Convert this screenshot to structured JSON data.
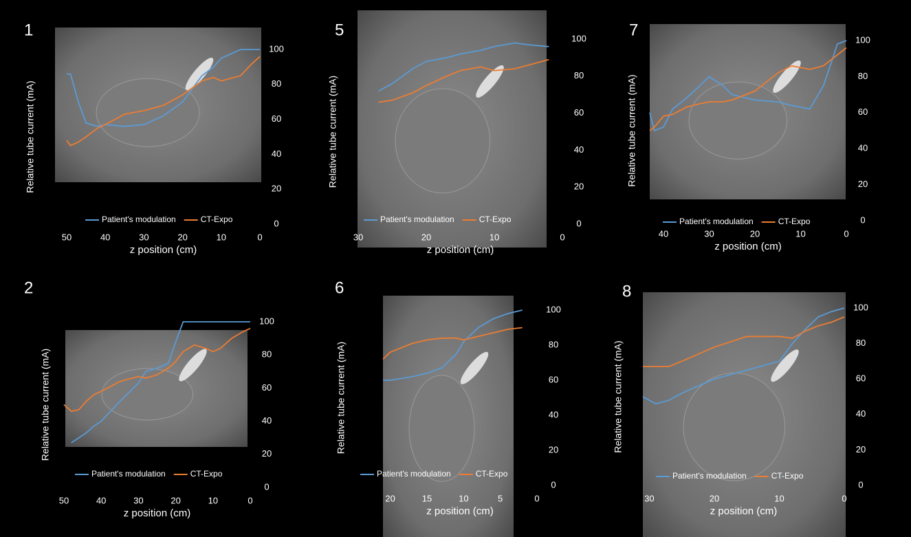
{
  "chart_data": [
    {
      "type": "line",
      "title": "1",
      "x_label": "z position (cm)",
      "y_label": "Relative tube current (mA)",
      "xlim": [
        50,
        0
      ],
      "xticks": [
        50,
        40,
        30,
        20,
        10,
        0
      ],
      "ylim": [
        0,
        100
      ],
      "yticks": [
        0,
        20,
        40,
        60,
        80,
        100
      ],
      "x": [
        50,
        49,
        47,
        45,
        42,
        40,
        35,
        30,
        25,
        20,
        15,
        12,
        10,
        5,
        2,
        0
      ],
      "series": [
        {
          "name": "Patient's modulation",
          "color": "#5b9bd5",
          "values": [
            86,
            86,
            70,
            58,
            56,
            57,
            56,
            57,
            62,
            70,
            85,
            90,
            95,
            100,
            100,
            100
          ]
        },
        {
          "name": "CT-Expo",
          "color": "#ed7d31",
          "values": [
            48,
            45,
            47,
            50,
            55,
            57,
            63,
            65,
            68,
            74,
            82,
            84,
            82,
            85,
            92,
            96
          ]
        }
      ]
    },
    {
      "type": "line",
      "title": "5",
      "x_label": "z position (cm)",
      "y_label": "Relative tube current (mA)",
      "xlim": [
        30,
        0
      ],
      "xticks": [
        30,
        20,
        10,
        0
      ],
      "ylim": [
        0,
        100
      ],
      "yticks": [
        0,
        20,
        40,
        60,
        80,
        100
      ],
      "x": [
        27,
        25,
        22,
        20,
        17,
        15,
        12,
        10,
        7,
        5,
        2
      ],
      "series": [
        {
          "name": "Patient's modulation",
          "color": "#5b9bd5",
          "values": [
            72,
            76,
            84,
            88,
            90,
            92,
            94,
            96,
            98,
            97,
            96
          ]
        },
        {
          "name": "CT-Expo",
          "color": "#ed7d31",
          "values": [
            66,
            67,
            71,
            75,
            80,
            83,
            85,
            83,
            84,
            86,
            89
          ]
        }
      ]
    },
    {
      "type": "line",
      "title": "7",
      "x_label": "z position (cm)",
      "y_label": "Relative tube current (mA)",
      "xlim": [
        43,
        0
      ],
      "xticks": [
        40,
        30,
        20,
        10,
        0
      ],
      "ylim": [
        0,
        100
      ],
      "yticks": [
        0,
        20,
        40,
        60,
        80,
        100
      ],
      "x": [
        43,
        42,
        40,
        38,
        35,
        32,
        30,
        27,
        25,
        20,
        15,
        12,
        10,
        8,
        5,
        3,
        2,
        0
      ],
      "series": [
        {
          "name": "Patient's modulation",
          "color": "#5b9bd5",
          "values": [
            60,
            50,
            52,
            62,
            68,
            75,
            80,
            75,
            70,
            67,
            66,
            64,
            63,
            62,
            75,
            90,
            98,
            100
          ]
        },
        {
          "name": "CT-Expo",
          "color": "#ed7d31",
          "values": [
            50,
            52,
            58,
            59,
            63,
            65,
            66,
            66,
            67,
            72,
            82,
            86,
            85,
            84,
            86,
            90,
            92,
            96
          ]
        }
      ]
    },
    {
      "type": "line",
      "title": "2",
      "x_label": "z position (cm)",
      "y_label": "Relative tube current (mA)",
      "xlim": [
        50,
        0
      ],
      "xticks": [
        50,
        40,
        30,
        20,
        10,
        0
      ],
      "ylim": [
        0,
        100
      ],
      "yticks": [
        0,
        20,
        40,
        60,
        80,
        100
      ],
      "x": [
        50,
        48,
        46,
        44,
        42,
        40,
        35,
        30,
        28,
        25,
        22,
        20,
        18,
        15,
        12,
        10,
        8,
        5,
        2,
        0
      ],
      "series": [
        {
          "name": "Patient's modulation",
          "color": "#5b9bd5",
          "values": [
            null,
            27,
            30,
            33,
            37,
            40,
            52,
            63,
            70,
            72,
            75,
            88,
            100,
            100,
            100,
            100,
            100,
            100,
            100,
            100
          ]
        },
        {
          "name": "CT-Expo",
          "color": "#ed7d31",
          "values": [
            50,
            46,
            47,
            52,
            56,
            58,
            64,
            67,
            66,
            68,
            72,
            76,
            82,
            86,
            84,
            82,
            84,
            90,
            94,
            96
          ]
        }
      ]
    },
    {
      "type": "line",
      "title": "6",
      "x_label": "z position (cm)",
      "y_label": "Relative tube current (mA)",
      "xlim": [
        21,
        0
      ],
      "xticks": [
        20,
        15,
        10,
        5,
        0
      ],
      "ylim": [
        0,
        100
      ],
      "yticks": [
        0,
        20,
        40,
        60,
        80,
        100
      ],
      "x": [
        21,
        20,
        17,
        15,
        13,
        11,
        10,
        8,
        6,
        4,
        2
      ],
      "series": [
        {
          "name": "Patient's modulation",
          "color": "#5b9bd5",
          "values": [
            60,
            60,
            62,
            64,
            67,
            75,
            82,
            90,
            95,
            98,
            100
          ]
        },
        {
          "name": "CT-Expo",
          "color": "#ed7d31",
          "values": [
            72,
            76,
            81,
            83,
            84,
            84,
            83,
            85,
            87,
            89,
            90
          ]
        }
      ]
    },
    {
      "type": "line",
      "title": "8",
      "x_label": "z position (cm)",
      "y_label": "Relative tube current (mA)",
      "xlim": [
        31,
        0
      ],
      "xticks": [
        30,
        20,
        10,
        0
      ],
      "ylim": [
        0,
        100
      ],
      "yticks": [
        0,
        20,
        40,
        60,
        80,
        100
      ],
      "x": [
        31,
        30,
        29,
        27,
        25,
        20,
        15,
        10,
        8,
        6,
        4,
        2,
        0
      ],
      "series": [
        {
          "name": "Patient's modulation",
          "color": "#5b9bd5",
          "values": [
            50,
            48,
            46,
            48,
            52,
            60,
            65,
            70,
            80,
            88,
            95,
            98,
            100
          ]
        },
        {
          "name": "CT-Expo",
          "color": "#ed7d31",
          "values": [
            67,
            67,
            67,
            67,
            70,
            78,
            84,
            84,
            83,
            87,
            90,
            92,
            95
          ]
        }
      ]
    }
  ]
}
